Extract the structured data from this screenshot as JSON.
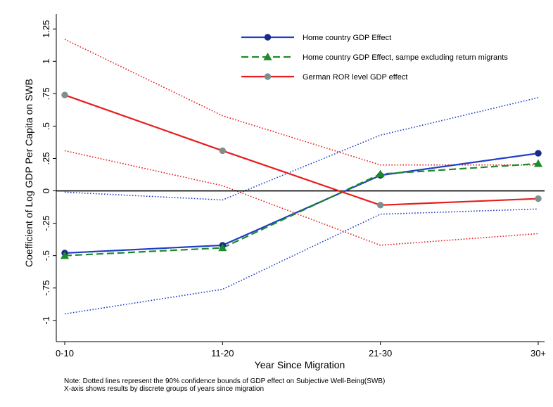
{
  "chart_data": {
    "type": "line",
    "categories": [
      "0-10",
      "11-20",
      "21-30",
      "30+"
    ],
    "xlabel": "Year Since Migration",
    "ylabel": "Coefficient of Log GDP Per Capita on SWB",
    "ylim": [
      -1.05,
      1.3
    ],
    "yticks": [
      -1,
      -0.75,
      -0.5,
      -0.25,
      0,
      0.25,
      0.5,
      0.75,
      1,
      1.25
    ],
    "ytick_labels": [
      "-1",
      "-.75",
      "-.5",
      "-.25",
      "0",
      ".25",
      ".5",
      ".75",
      "1",
      "1.25"
    ],
    "grid": false,
    "zero_line": true,
    "legend_position": "top-right",
    "series": [
      {
        "name": "Home country GDP Effect",
        "values": [
          -0.48,
          -0.42,
          0.12,
          0.29
        ],
        "color": "#1f3fc4",
        "style": "solid",
        "marker": "circle",
        "marker_color": "#1a2a8a"
      },
      {
        "name": "Home country GDP Effect, sampe excluding return migrants",
        "values": [
          -0.5,
          -0.44,
          0.13,
          0.21
        ],
        "color": "#1e8a2a",
        "style": "dashed",
        "marker": "triangle",
        "marker_color": "#1e8a2a"
      },
      {
        "name": "German ROR level GDP effect",
        "values": [
          0.74,
          0.31,
          -0.11,
          -0.06
        ],
        "color": "#e81c1c",
        "style": "solid",
        "marker": "circle",
        "marker_color": "#7f8f8f"
      }
    ],
    "confidence_bounds": [
      {
        "color": "#1f3fc4",
        "upper": [
          -0.01,
          -0.07,
          0.43,
          0.72
        ],
        "lower": [
          -0.95,
          -0.76,
          -0.18,
          -0.14
        ]
      },
      {
        "color": "#e81c1c",
        "upper": [
          1.17,
          0.58,
          0.2,
          0.2
        ],
        "lower": [
          0.31,
          0.04,
          -0.42,
          -0.33
        ]
      }
    ],
    "notes": [
      "Note: Dotted lines represent the 90% confidence bounds of GDP effect on Subjective Well-Being(SWB)",
      "X-axis shows results by discrete groups of years since migration"
    ]
  }
}
